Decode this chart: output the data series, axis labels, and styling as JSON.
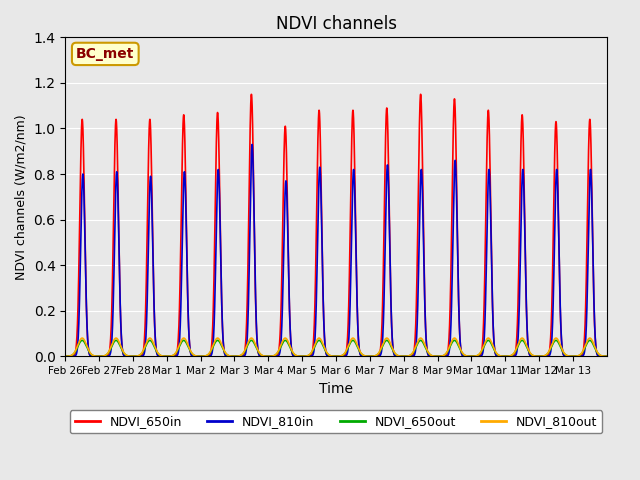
{
  "title": "NDVI channels",
  "xlabel": "Time",
  "ylabel": "NDVI channels (W/m2/nm)",
  "ylim": [
    0,
    1.4
  ],
  "background_color": "#e8e8e8",
  "plot_bg_color": "#e8e8e8",
  "annotation_text": "BC_met",
  "annotation_bg": "#ffffcc",
  "annotation_border": "#cc9900",
  "annotation_text_color": "#8b0000",
  "tick_labels": [
    "Feb 26",
    "Feb 27",
    "Feb 28",
    "Mar 1",
    "Mar 2",
    "Mar 3",
    "Mar 4",
    "Mar 5",
    "Mar 6",
    "Mar 7",
    "Mar 8",
    "Mar 9",
    "Mar 10",
    "Mar 11",
    "Mar 12",
    "Mar 13"
  ],
  "num_days": 16,
  "peaks_650in": [
    1.04,
    1.04,
    1.04,
    1.06,
    1.07,
    1.15,
    1.01,
    1.08,
    1.08,
    1.09,
    1.15,
    1.13,
    1.08,
    1.06,
    1.03,
    1.04
  ],
  "peaks_810in": [
    0.8,
    0.81,
    0.79,
    0.81,
    0.82,
    0.93,
    0.77,
    0.83,
    0.82,
    0.84,
    0.82,
    0.86,
    0.82,
    0.82,
    0.82,
    0.82
  ],
  "peaks_650out": [
    0.07,
    0.07,
    0.07,
    0.07,
    0.07,
    0.07,
    0.07,
    0.07,
    0.07,
    0.07,
    0.07,
    0.07,
    0.07,
    0.07,
    0.07,
    0.07
  ],
  "peaks_810out": [
    0.08,
    0.08,
    0.08,
    0.08,
    0.08,
    0.08,
    0.08,
    0.08,
    0.08,
    0.08,
    0.08,
    0.08,
    0.08,
    0.08,
    0.08,
    0.08
  ],
  "color_650in": "#ff0000",
  "color_810in": "#0000cc",
  "color_650out": "#00aa00",
  "color_810out": "#ffaa00",
  "linewidth": 1.2,
  "legend_labels": [
    "NDVI_650in",
    "NDVI_810in",
    "NDVI_650out",
    "NDVI_810out"
  ],
  "yticks": [
    0.0,
    0.2,
    0.4,
    0.6,
    0.8,
    1.0,
    1.2,
    1.4
  ]
}
